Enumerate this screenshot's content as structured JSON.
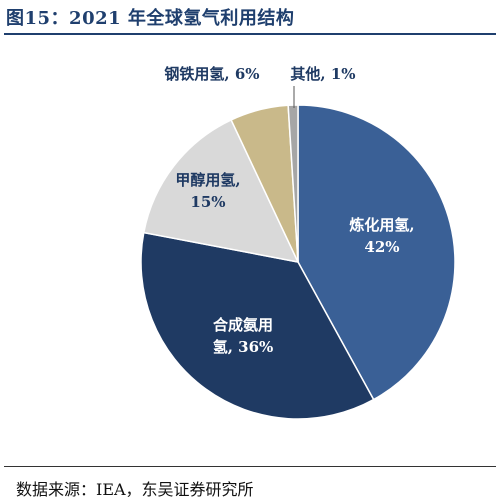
{
  "header": {
    "title": "图15：2021 年全球氢气利用结构"
  },
  "footer": {
    "source": "数据来源：IEA，东吴证券研究所"
  },
  "chart_data": {
    "type": "pie",
    "title": "2021 年全球氢气利用结构",
    "slices": [
      {
        "name": "炼化用氢",
        "value": 42,
        "label_lines": [
          "炼化用氢,",
          "42%"
        ],
        "color": "#3a6096",
        "text_color": "#ffffff"
      },
      {
        "name": "合成氨用氢",
        "value": 36,
        "label_lines": [
          "合成氨用",
          "氢, 36%"
        ],
        "color": "#1f3a63",
        "text_color": "#ffffff"
      },
      {
        "name": "甲醇用氢",
        "value": 15,
        "label_lines": [
          "甲醇用氢,",
          "15%"
        ],
        "color": "#d9d9d9",
        "text_color": "#1f3a63"
      },
      {
        "name": "钢铁用氢",
        "value": 6,
        "label_lines": [
          "钢铁用氢, 6%"
        ],
        "color": "#c9b98a",
        "text_color": "#1f3a63"
      },
      {
        "name": "其他",
        "value": 1,
        "label_lines": [
          "其他, 1%"
        ],
        "color": "#a6a6a6",
        "text_color": "#1f3a63"
      }
    ]
  }
}
